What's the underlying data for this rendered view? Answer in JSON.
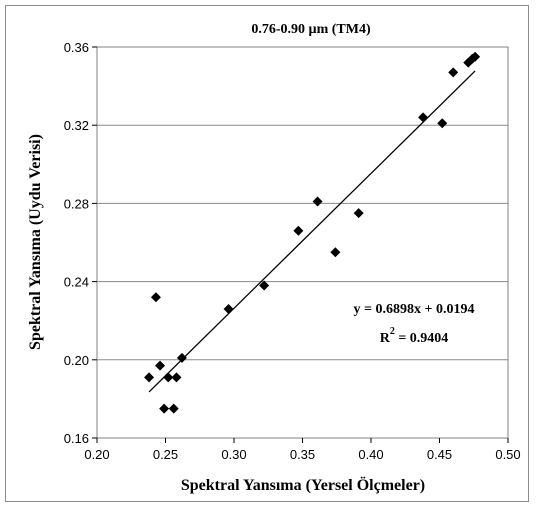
{
  "chart_data": {
    "type": "scatter",
    "title": "0.76-0.90 µm (TM4)",
    "xlabel": "Spektral Yansıma (Yersel Ölçmeler)",
    "ylabel": "Spektral Yansıma (Uydu Verisi)",
    "xlim": [
      0.2,
      0.5
    ],
    "ylim": [
      0.16,
      0.36
    ],
    "x_ticks": [
      "0.20",
      "0.25",
      "0.30",
      "0.35",
      "0.40",
      "0.45",
      "0.50"
    ],
    "y_ticks": [
      "0.16",
      "0.20",
      "0.24",
      "0.28",
      "0.32",
      "0.36"
    ],
    "grid": "horizontal",
    "marker": "diamond",
    "marker_color": "#000000",
    "points": [
      {
        "x": 0.238,
        "y": 0.191
      },
      {
        "x": 0.243,
        "y": 0.232
      },
      {
        "x": 0.246,
        "y": 0.197
      },
      {
        "x": 0.249,
        "y": 0.175
      },
      {
        "x": 0.252,
        "y": 0.191
      },
      {
        "x": 0.256,
        "y": 0.175
      },
      {
        "x": 0.258,
        "y": 0.191
      },
      {
        "x": 0.262,
        "y": 0.201
      },
      {
        "x": 0.296,
        "y": 0.226
      },
      {
        "x": 0.322,
        "y": 0.238
      },
      {
        "x": 0.347,
        "y": 0.266
      },
      {
        "x": 0.361,
        "y": 0.281
      },
      {
        "x": 0.374,
        "y": 0.255
      },
      {
        "x": 0.391,
        "y": 0.275
      },
      {
        "x": 0.438,
        "y": 0.324
      },
      {
        "x": 0.452,
        "y": 0.321
      },
      {
        "x": 0.46,
        "y": 0.347
      },
      {
        "x": 0.471,
        "y": 0.352
      },
      {
        "x": 0.474,
        "y": 0.354
      },
      {
        "x": 0.476,
        "y": 0.355
      }
    ],
    "trendline": {
      "slope": 0.6898,
      "intercept": 0.0194,
      "x_range": [
        0.238,
        0.476
      ]
    },
    "equation_label": "y = 0.6898x + 0.0194",
    "r2_label_base": "R",
    "r2_label_sup": "2",
    "r2_label_value": " = 0.9404"
  }
}
